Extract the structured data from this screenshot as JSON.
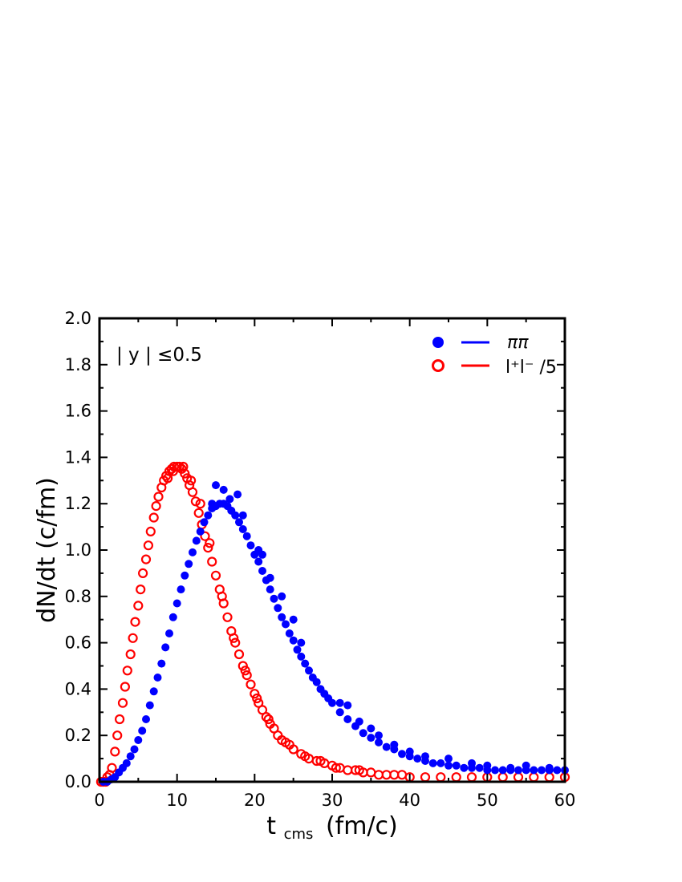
{
  "chart_data": {
    "type": "scatter",
    "title": "",
    "xlabel": {
      "main": "t",
      "sub": "cms",
      "units": "(fm/c)"
    },
    "ylabel": "dN/dt (c/fm)",
    "xlim": [
      0,
      60
    ],
    "ylim": [
      0,
      2.0
    ],
    "x_ticks": [
      "0",
      "10",
      "20",
      "30",
      "40",
      "50",
      "60"
    ],
    "y_ticks": [
      "0.0",
      "0.2",
      "0.4",
      "0.6",
      "0.8",
      "1.0",
      "1.2",
      "1.4",
      "1.6",
      "1.8",
      "2.0"
    ],
    "grid": false,
    "legend_position": "top-right",
    "annotation": "| y | ≤0.5",
    "series": [
      {
        "name": "ππ",
        "marker": "filled-circle",
        "color": "#0000ff",
        "points": [
          [
            0.5,
            0.0
          ],
          [
            1.0,
            0.0
          ],
          [
            1.5,
            0.01
          ],
          [
            2.0,
            0.02
          ],
          [
            2.5,
            0.04
          ],
          [
            3.0,
            0.06
          ],
          [
            3.5,
            0.08
          ],
          [
            4.0,
            0.11
          ],
          [
            4.5,
            0.14
          ],
          [
            5.0,
            0.18
          ],
          [
            5.5,
            0.22
          ],
          [
            6.0,
            0.27
          ],
          [
            6.5,
            0.33
          ],
          [
            7.0,
            0.39
          ],
          [
            7.5,
            0.45
          ],
          [
            8.0,
            0.51
          ],
          [
            8.5,
            0.58
          ],
          [
            9.0,
            0.64
          ],
          [
            9.5,
            0.71
          ],
          [
            10.0,
            0.77
          ],
          [
            10.5,
            0.83
          ],
          [
            11.0,
            0.89
          ],
          [
            11.5,
            0.94
          ],
          [
            12.0,
            0.99
          ],
          [
            12.5,
            1.04
          ],
          [
            13.0,
            1.08
          ],
          [
            13.5,
            1.12
          ],
          [
            14.0,
            1.15
          ],
          [
            14.5,
            1.18
          ],
          [
            15.0,
            1.19
          ],
          [
            15.5,
            1.2
          ],
          [
            16.0,
            1.2
          ],
          [
            16.5,
            1.19
          ],
          [
            17.0,
            1.17
          ],
          [
            17.5,
            1.15
          ],
          [
            18.0,
            1.12
          ],
          [
            18.5,
            1.09
          ],
          [
            19.0,
            1.06
          ],
          [
            19.5,
            1.02
          ],
          [
            20.0,
            0.98
          ],
          [
            20.5,
            0.95
          ],
          [
            21.0,
            0.91
          ],
          [
            21.5,
            0.87
          ],
          [
            22.0,
            0.83
          ],
          [
            22.5,
            0.79
          ],
          [
            23.0,
            0.75
          ],
          [
            23.5,
            0.71
          ],
          [
            24.0,
            0.68
          ],
          [
            24.5,
            0.64
          ],
          [
            25.0,
            0.61
          ],
          [
            25.5,
            0.57
          ],
          [
            26.0,
            0.54
          ],
          [
            26.5,
            0.51
          ],
          [
            27.0,
            0.48
          ],
          [
            27.5,
            0.45
          ],
          [
            28.0,
            0.43
          ],
          [
            28.5,
            0.4
          ],
          [
            29.0,
            0.38
          ],
          [
            29.5,
            0.36
          ],
          [
            30.0,
            0.34
          ],
          [
            31.0,
            0.3
          ],
          [
            32.0,
            0.27
          ],
          [
            33.0,
            0.24
          ],
          [
            34.0,
            0.21
          ],
          [
            35.0,
            0.19
          ],
          [
            36.0,
            0.17
          ],
          [
            37.0,
            0.15
          ],
          [
            38.0,
            0.14
          ],
          [
            39.0,
            0.12
          ],
          [
            40.0,
            0.11
          ],
          [
            41.0,
            0.1
          ],
          [
            42.0,
            0.09
          ],
          [
            43.0,
            0.08
          ],
          [
            44.0,
            0.08
          ],
          [
            45.0,
            0.07
          ],
          [
            46.0,
            0.07
          ],
          [
            47.0,
            0.06
          ],
          [
            48.0,
            0.06
          ],
          [
            49.0,
            0.06
          ],
          [
            50.0,
            0.05
          ],
          [
            51.0,
            0.05
          ],
          [
            52.0,
            0.05
          ],
          [
            53.0,
            0.05
          ],
          [
            54.0,
            0.05
          ],
          [
            55.0,
            0.05
          ],
          [
            56.0,
            0.05
          ],
          [
            57.0,
            0.05
          ],
          [
            58.0,
            0.05
          ],
          [
            59.0,
            0.05
          ],
          [
            60.0,
            0.05
          ],
          [
            15.0,
            1.28
          ],
          [
            16.0,
            1.26
          ],
          [
            17.8,
            1.24
          ],
          [
            14.5,
            1.2
          ],
          [
            16.8,
            1.22
          ],
          [
            18.5,
            1.15
          ],
          [
            20.5,
            1.0
          ],
          [
            21.0,
            0.98
          ],
          [
            22.0,
            0.88
          ],
          [
            23.5,
            0.8
          ],
          [
            25.0,
            0.7
          ],
          [
            26.0,
            0.6
          ],
          [
            31.0,
            0.34
          ],
          [
            32.0,
            0.33
          ],
          [
            33.5,
            0.26
          ],
          [
            35.0,
            0.23
          ],
          [
            36.0,
            0.2
          ],
          [
            38.0,
            0.16
          ],
          [
            40.0,
            0.13
          ],
          [
            42.0,
            0.11
          ],
          [
            45.0,
            0.1
          ],
          [
            48.0,
            0.08
          ],
          [
            50.0,
            0.07
          ],
          [
            53.0,
            0.06
          ],
          [
            55.0,
            0.07
          ],
          [
            58.0,
            0.06
          ]
        ]
      },
      {
        "name": "l⁺l⁻ /5",
        "marker": "open-circle",
        "color": "#ff0000",
        "points": [
          [
            0.2,
            0.0
          ],
          [
            0.5,
            0.0
          ],
          [
            0.8,
            0.0
          ],
          [
            1.0,
            0.02
          ],
          [
            1.3,
            0.03
          ],
          [
            1.6,
            0.06
          ],
          [
            2.0,
            0.13
          ],
          [
            2.3,
            0.2
          ],
          [
            2.6,
            0.27
          ],
          [
            3.0,
            0.34
          ],
          [
            3.3,
            0.41
          ],
          [
            3.6,
            0.48
          ],
          [
            4.0,
            0.55
          ],
          [
            4.3,
            0.62
          ],
          [
            4.6,
            0.69
          ],
          [
            5.0,
            0.76
          ],
          [
            5.3,
            0.83
          ],
          [
            5.6,
            0.9
          ],
          [
            6.0,
            0.96
          ],
          [
            6.3,
            1.02
          ],
          [
            6.6,
            1.08
          ],
          [
            7.0,
            1.14
          ],
          [
            7.3,
            1.19
          ],
          [
            7.6,
            1.23
          ],
          [
            8.0,
            1.27
          ],
          [
            8.3,
            1.3
          ],
          [
            8.6,
            1.32
          ],
          [
            9.0,
            1.34
          ],
          [
            9.3,
            1.35
          ],
          [
            9.6,
            1.36
          ],
          [
            10.0,
            1.36
          ],
          [
            10.3,
            1.36
          ],
          [
            10.6,
            1.35
          ],
          [
            11.0,
            1.33
          ],
          [
            11.3,
            1.31
          ],
          [
            11.6,
            1.28
          ],
          [
            12.0,
            1.25
          ],
          [
            12.4,
            1.21
          ],
          [
            12.8,
            1.16
          ],
          [
            13.2,
            1.11
          ],
          [
            13.6,
            1.06
          ],
          [
            14.0,
            1.01
          ],
          [
            14.5,
            0.95
          ],
          [
            15.0,
            0.89
          ],
          [
            15.5,
            0.83
          ],
          [
            16.0,
            0.77
          ],
          [
            16.5,
            0.71
          ],
          [
            17.0,
            0.65
          ],
          [
            17.5,
            0.6
          ],
          [
            18.0,
            0.55
          ],
          [
            18.5,
            0.5
          ],
          [
            19.0,
            0.46
          ],
          [
            19.5,
            0.42
          ],
          [
            20.0,
            0.38
          ],
          [
            20.5,
            0.34
          ],
          [
            21.0,
            0.31
          ],
          [
            21.5,
            0.28
          ],
          [
            22.0,
            0.25
          ],
          [
            22.5,
            0.23
          ],
          [
            23.0,
            0.2
          ],
          [
            23.5,
            0.18
          ],
          [
            24.0,
            0.17
          ],
          [
            25.0,
            0.14
          ],
          [
            26.0,
            0.12
          ],
          [
            27.0,
            0.1
          ],
          [
            28.0,
            0.09
          ],
          [
            29.0,
            0.08
          ],
          [
            30.0,
            0.07
          ],
          [
            31.0,
            0.06
          ],
          [
            32.0,
            0.05
          ],
          [
            33.0,
            0.05
          ],
          [
            34.0,
            0.04
          ],
          [
            35.0,
            0.04
          ],
          [
            36.0,
            0.03
          ],
          [
            37.0,
            0.03
          ],
          [
            38.0,
            0.03
          ],
          [
            39.0,
            0.03
          ],
          [
            40.0,
            0.02
          ],
          [
            42.0,
            0.02
          ],
          [
            44.0,
            0.02
          ],
          [
            46.0,
            0.02
          ],
          [
            48.0,
            0.02
          ],
          [
            50.0,
            0.02
          ],
          [
            52.0,
            0.02
          ],
          [
            54.0,
            0.02
          ],
          [
            56.0,
            0.02
          ],
          [
            58.0,
            0.02
          ],
          [
            60.0,
            0.02
          ],
          [
            8.8,
            1.31
          ],
          [
            9.5,
            1.34
          ],
          [
            10.8,
            1.36
          ],
          [
            11.8,
            1.3
          ],
          [
            13.0,
            1.2
          ],
          [
            14.2,
            1.03
          ],
          [
            15.8,
            0.8
          ],
          [
            17.3,
            0.62
          ],
          [
            18.8,
            0.48
          ],
          [
            20.3,
            0.36
          ],
          [
            21.8,
            0.27
          ],
          [
            24.5,
            0.16
          ],
          [
            26.5,
            0.11
          ],
          [
            28.5,
            0.09
          ],
          [
            30.5,
            0.06
          ],
          [
            33.5,
            0.05
          ]
        ]
      }
    ]
  }
}
